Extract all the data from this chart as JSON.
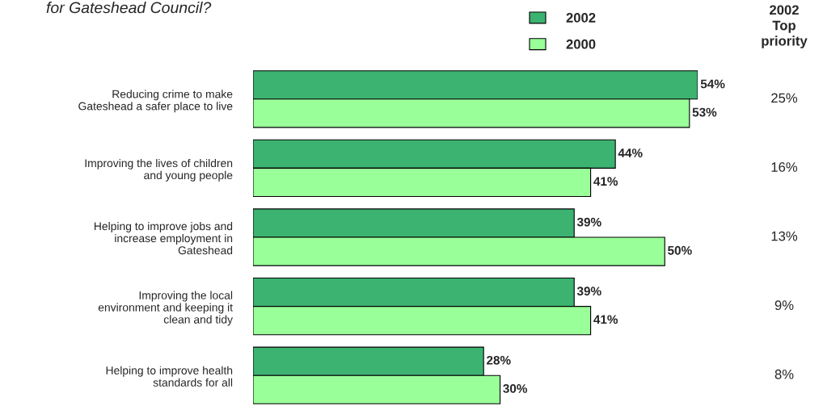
{
  "chart_data": {
    "type": "bar",
    "orientation": "horizontal",
    "title": "for Gateshead Council?",
    "categories": [
      "Reducing crime to make\nGateshead a safer place to live",
      "Improving the lives of children\nand young people",
      "Helping to improve jobs and\nincrease employment in\nGateshead",
      "Improving the local\nenvironment and keeping it\nclean and tidy",
      "Helping to improve health\nstandards for all"
    ],
    "series": [
      {
        "name": "2002",
        "color": "#3cb371",
        "values": [
          54,
          44,
          39,
          39,
          28
        ],
        "value_labels": [
          "54%",
          "44%",
          "39%",
          "39%",
          "28%"
        ]
      },
      {
        "name": "2000",
        "color": "#99ff99",
        "values": [
          53,
          41,
          50,
          41,
          30
        ],
        "value_labels": [
          "53%",
          "41%",
          "50%",
          "41%",
          "30%"
        ]
      }
    ],
    "legend": "top",
    "grid": false,
    "annotations": [
      "2002\nTop\npriority",
      "25%",
      "16%",
      "13%",
      "9%",
      "8%"
    ]
  }
}
